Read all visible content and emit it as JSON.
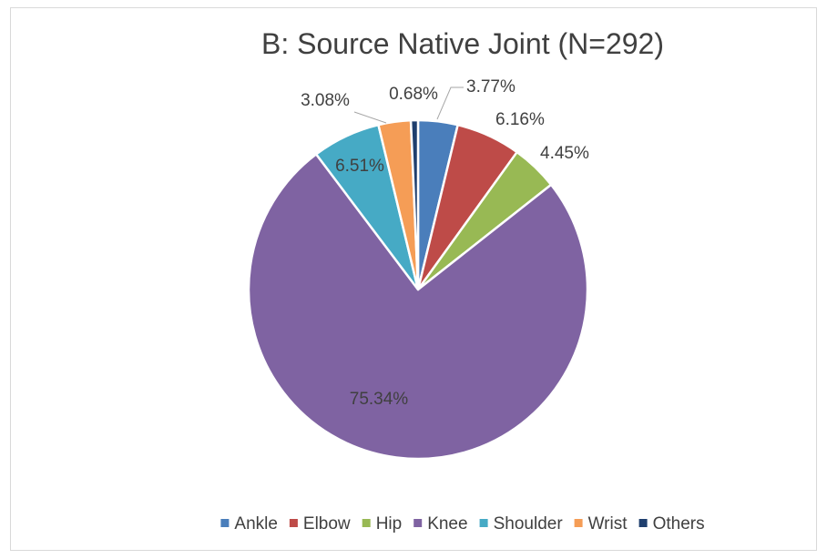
{
  "chart_data": {
    "type": "pie",
    "title": "B: Source Native Joint (N=292)",
    "categories": [
      "Ankle",
      "Elbow",
      "Hip",
      "Knee",
      "Shoulder",
      "Wrist",
      "Others"
    ],
    "values": [
      3.77,
      6.16,
      4.45,
      75.34,
      6.51,
      3.08,
      0.68
    ],
    "labels": [
      "3.77%",
      "6.16%",
      "4.45%",
      "75.34%",
      "6.51%",
      "3.08%",
      "0.68%"
    ],
    "colors": [
      "#4a7ebb",
      "#be4b48",
      "#98b954",
      "#7f63a2",
      "#46aac5",
      "#f59d56",
      "#1f3f6e"
    ],
    "legend_position": "bottom"
  }
}
